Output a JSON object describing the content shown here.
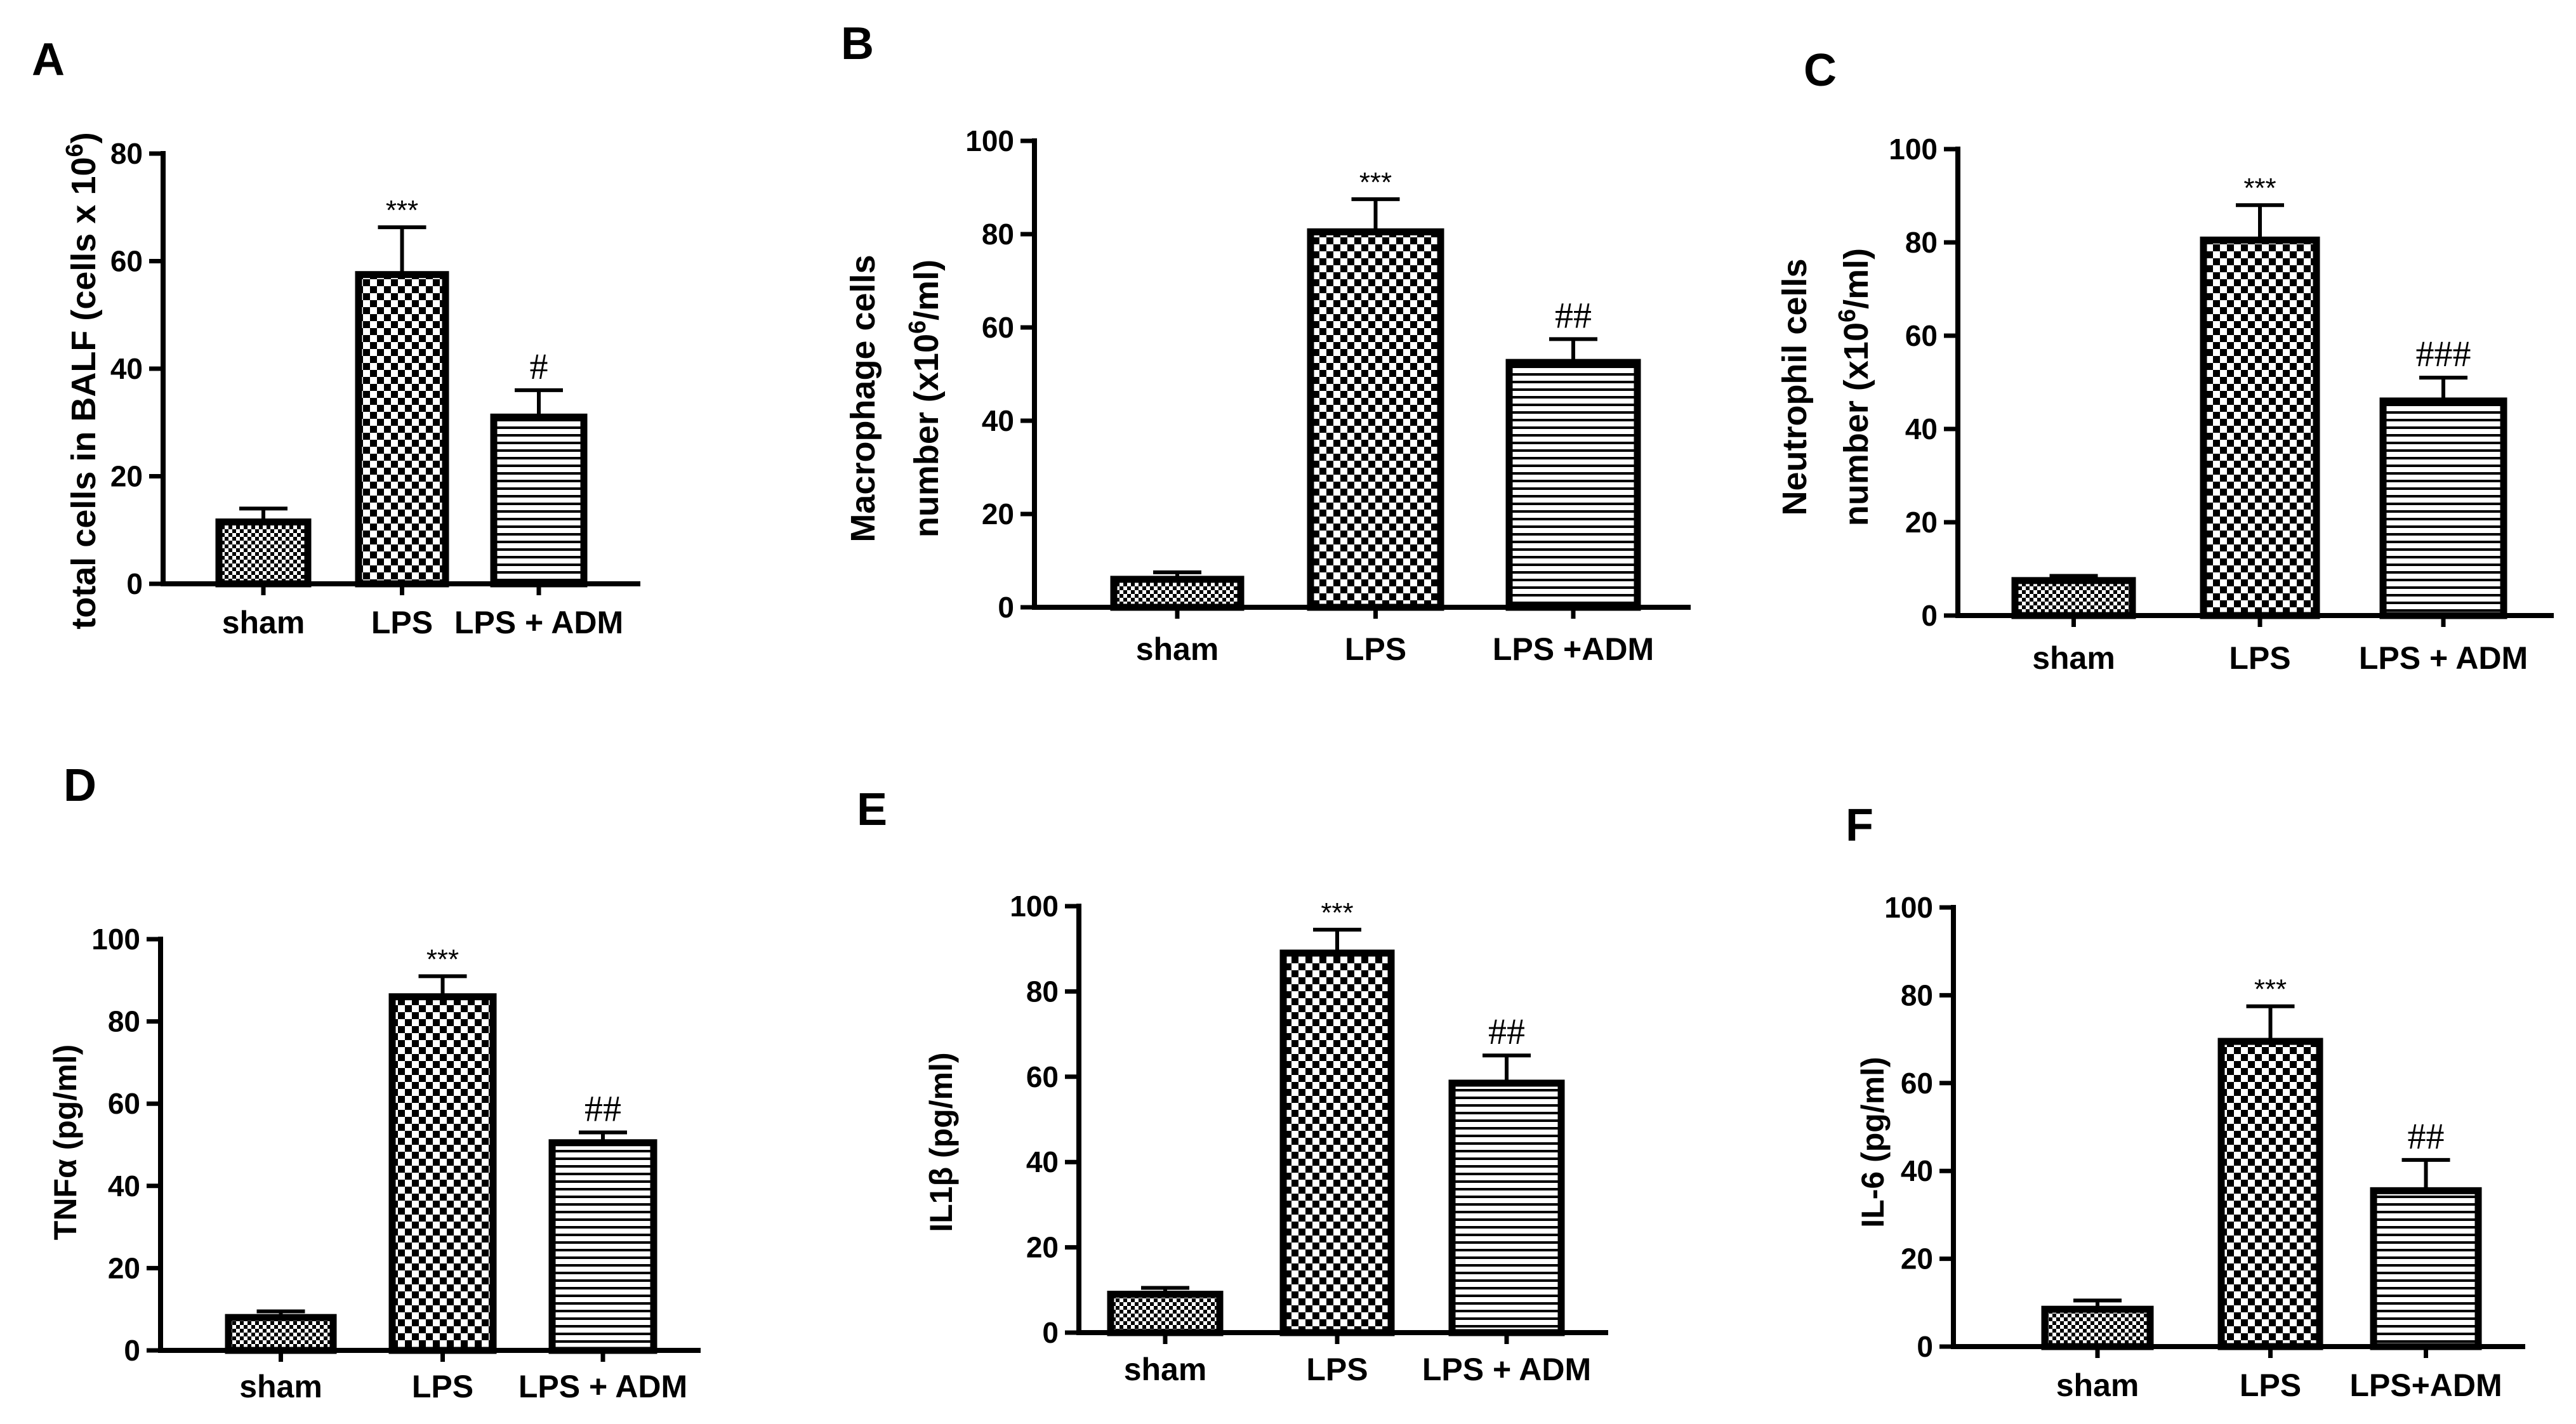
{
  "chart_data": [
    {
      "id": "A",
      "panel_label": "A",
      "type": "bar",
      "title": "",
      "ylabel": "total cells in BALF (cells x 10",
      "ylabel_sup": "6",
      "ylabel_suffix": ")",
      "categories": [
        "sham",
        "LPS",
        "LPS + ADM"
      ],
      "values": [
        11.5,
        57.5,
        31.0
      ],
      "errors": [
        2.5,
        8.8,
        5.0
      ],
      "annotations": [
        "",
        "***",
        "#"
      ],
      "ylim": [
        0,
        80
      ],
      "yticks": [
        0,
        20,
        40,
        60,
        80
      ]
    },
    {
      "id": "B",
      "panel_label": "B",
      "type": "bar",
      "title": "",
      "ylabel_line1": "Macrophage  cells",
      "ylabel_line2": "number (x10",
      "ylabel_sup": "6",
      "ylabel_suffix": "/ml)",
      "categories": [
        "sham",
        "LPS",
        "LPS +ADM"
      ],
      "values": [
        6.0,
        80.5,
        52.5
      ],
      "errors": [
        1.5,
        7.0,
        5.0
      ],
      "annotations": [
        "",
        "***",
        "##"
      ],
      "ylim": [
        0,
        100
      ],
      "yticks": [
        0,
        20,
        40,
        60,
        80,
        100
      ]
    },
    {
      "id": "C",
      "panel_label": "C",
      "type": "bar",
      "title": "",
      "ylabel_line1": "Neutrophil cells",
      "ylabel_line2": "number (x10",
      "ylabel_sup": "6",
      "ylabel_suffix": "/ml)",
      "categories": [
        "sham",
        "LPS",
        "LPS + ADM"
      ],
      "values": [
        7.5,
        80.5,
        46.0
      ],
      "errors": [
        1.0,
        7.5,
        5.0
      ],
      "annotations": [
        "",
        "***",
        "###"
      ],
      "ylim": [
        0,
        100
      ],
      "yticks": [
        0,
        20,
        40,
        60,
        80,
        100
      ]
    },
    {
      "id": "D",
      "panel_label": "D",
      "type": "bar",
      "title": "",
      "ylabel": "TNFα (pg/ml)",
      "categories": [
        "sham",
        "LPS",
        "LPS + ADM"
      ],
      "values": [
        8.0,
        86.0,
        50.5
      ],
      "errors": [
        1.5,
        5.0,
        2.5
      ],
      "annotations": [
        "",
        "***",
        "##"
      ],
      "ylim": [
        0,
        100
      ],
      "yticks": [
        0,
        20,
        40,
        60,
        80,
        100
      ]
    },
    {
      "id": "E",
      "panel_label": "E",
      "type": "bar",
      "title": "",
      "ylabel": "IL1β (pg/ml)",
      "categories": [
        "sham",
        "LPS",
        "LPS + ADM"
      ],
      "values": [
        9.0,
        89.0,
        58.5
      ],
      "errors": [
        1.5,
        5.5,
        6.5
      ],
      "annotations": [
        "",
        "***",
        "##"
      ],
      "ylim": [
        0,
        100
      ],
      "yticks": [
        0,
        20,
        40,
        60,
        80,
        100
      ]
    },
    {
      "id": "F",
      "panel_label": "F",
      "type": "bar",
      "title": "",
      "ylabel": "IL-6 (pg/ml)",
      "categories": [
        "sham",
        "LPS",
        "LPS+ADM"
      ],
      "values": [
        8.5,
        69.5,
        35.5
      ],
      "errors": [
        2.0,
        8.0,
        7.0
      ],
      "annotations": [
        "",
        "***",
        "##"
      ],
      "ylim": [
        0,
        100
      ],
      "yticks": [
        0,
        20,
        40,
        60,
        80,
        100
      ]
    }
  ]
}
